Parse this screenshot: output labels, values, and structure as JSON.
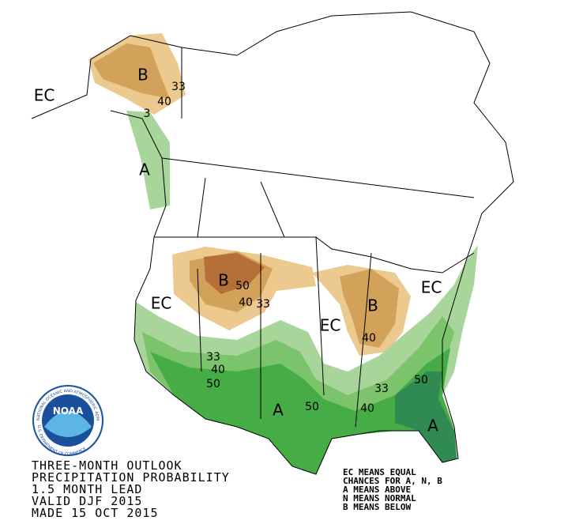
{
  "map": {
    "labels": [
      "B",
      "33",
      "40",
      "EC",
      "3",
      "A",
      "B",
      "50",
      "40",
      "33",
      "EC",
      "EC",
      "B",
      "40",
      "EC",
      "33",
      "40",
      "50",
      "A",
      "50",
      "33",
      "40",
      "50",
      "A"
    ],
    "logo": {
      "name": "NOAA",
      "ring_top": "NATIONAL OCEANIC AND ATMOSPHERIC ADMINISTRATION",
      "ring_bottom": "U.S. DEPARTMENT OF COMMERCE"
    },
    "title_lines": [
      "THREE-MONTH OUTLOOK",
      "PRECIPITATION PROBABILITY",
      "1.5 MONTH LEAD",
      "VALID DJF 2015",
      "MADE 15 OCT 2015"
    ],
    "legend_lines": [
      "EC MEANS EQUAL",
      "CHANCES FOR A, N, B",
      "A MEANS ABOVE",
      "N MEANS NORMAL",
      "B MEANS BELOW"
    ]
  }
}
